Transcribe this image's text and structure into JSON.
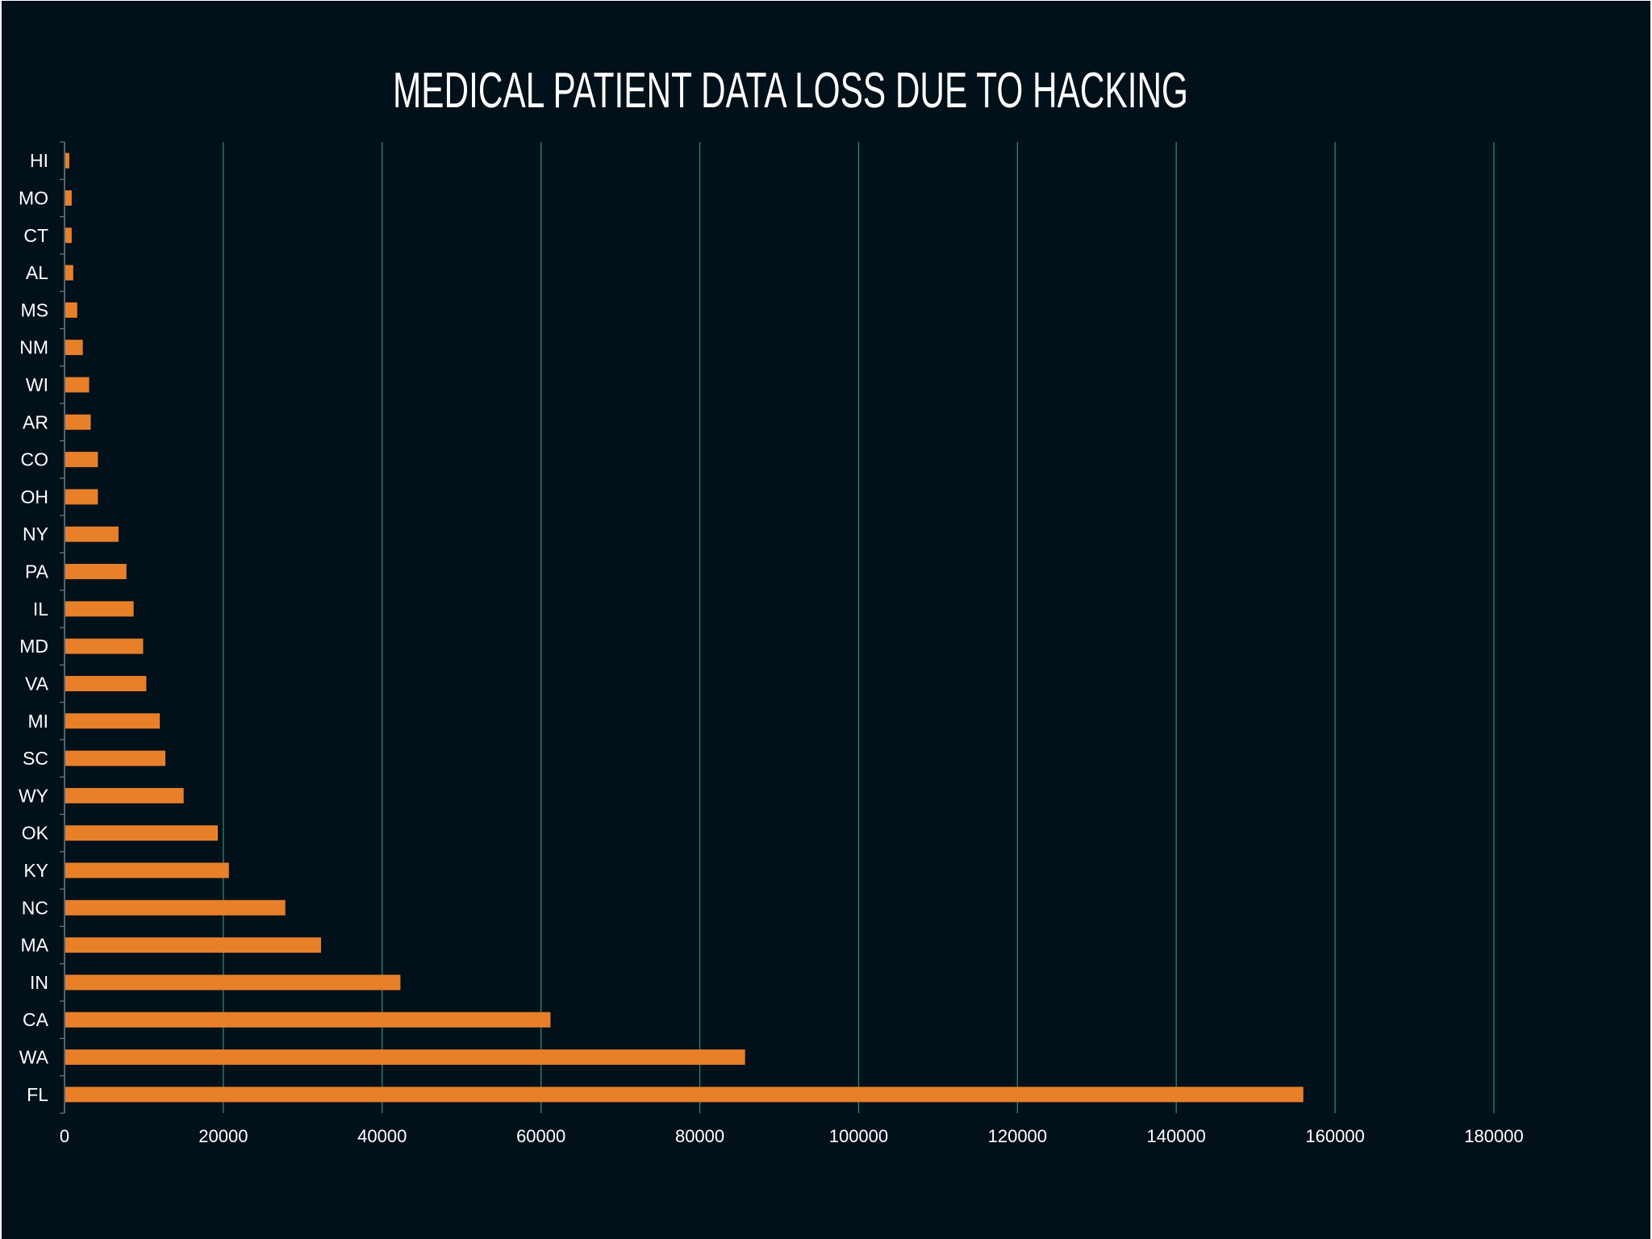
{
  "chart_data": {
    "type": "bar",
    "orientation": "horizontal",
    "title": "MEDICAL PATIENT DATA LOSS DUE TO HACKING",
    "xlabel": "",
    "ylabel": "",
    "categories": [
      "FL",
      "WA",
      "CA",
      "IN",
      "MA",
      "NC",
      "KY",
      "OK",
      "WY",
      "SC",
      "MI",
      "VA",
      "MD",
      "IL",
      "PA",
      "NY",
      "OH",
      "CO",
      "AR",
      "WI",
      "NM",
      "MS",
      "AL",
      "CT",
      "MO",
      "HI"
    ],
    "values": [
      156000,
      85700,
      61200,
      42300,
      32300,
      27800,
      20700,
      19300,
      15000,
      12700,
      12000,
      10300,
      9900,
      8700,
      7800,
      6800,
      4200,
      4200,
      3300,
      3100,
      2300,
      1600,
      1100,
      900,
      900,
      600
    ],
    "xlim": [
      0,
      180000
    ],
    "xticks": [
      "0",
      "20000",
      "40000",
      "60000",
      "80000",
      "100000",
      "120000",
      "140000",
      "160000",
      "180000"
    ],
    "grid": "vertical",
    "legend": "none",
    "colors": {
      "background": "#02101a",
      "bar": "#e8802a",
      "grid": "#2d8a5e",
      "axis": "#6b7f8c",
      "text": "#ffffff"
    }
  }
}
